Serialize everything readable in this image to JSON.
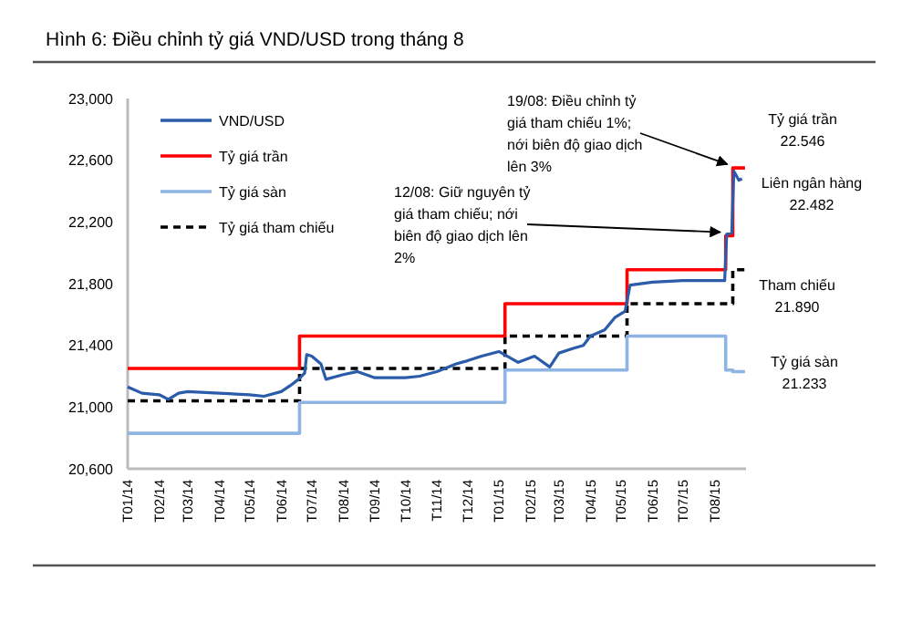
{
  "chart_data": {
    "type": "line",
    "title": "Hình 6: Điều chỉnh tỷ giá VND/USD trong tháng 8",
    "xlim": [
      "2014-01-01",
      "2015-09-01"
    ],
    "xticks": [
      {
        "value": "2014-01-01",
        "label": "T01/14"
      },
      {
        "value": "2014-02-01",
        "label": "T02/14"
      },
      {
        "value": "2014-03-01",
        "label": "T03/14"
      },
      {
        "value": "2014-04-01",
        "label": "T04/14"
      },
      {
        "value": "2014-05-01",
        "label": "T05/14"
      },
      {
        "value": "2014-06-01",
        "label": "T06/14"
      },
      {
        "value": "2014-07-01",
        "label": "T07/14"
      },
      {
        "value": "2014-08-01",
        "label": "T08/14"
      },
      {
        "value": "2014-09-01",
        "label": "T09/14"
      },
      {
        "value": "2014-10-01",
        "label": "T10/14"
      },
      {
        "value": "2014-11-01",
        "label": "T11/14"
      },
      {
        "value": "2014-12-01",
        "label": "T12/14"
      },
      {
        "value": "2015-01-01",
        "label": "T01/15"
      },
      {
        "value": "2015-02-01",
        "label": "T02/15"
      },
      {
        "value": "2015-03-01",
        "label": "T03/15"
      },
      {
        "value": "2015-04-01",
        "label": "T04/15"
      },
      {
        "value": "2015-05-01",
        "label": "T05/15"
      },
      {
        "value": "2015-06-01",
        "label": "T06/15"
      },
      {
        "value": "2015-07-01",
        "label": "T07/15"
      },
      {
        "value": "2015-08-01",
        "label": "T08/15"
      }
    ],
    "ylim": [
      20600,
      23000
    ],
    "yticks": [
      {
        "value": 20600,
        "label": "20,600"
      },
      {
        "value": 21000,
        "label": "21,000"
      },
      {
        "value": 21400,
        "label": "21,400"
      },
      {
        "value": 21800,
        "label": "21,800"
      },
      {
        "value": 22200,
        "label": "22,200"
      },
      {
        "value": 22600,
        "label": "22,600"
      },
      {
        "value": 23000,
        "label": "23,000"
      }
    ],
    "grid": false,
    "legend": "top left",
    "series": [
      {
        "name": "VND/USD",
        "color": "#2a5caa",
        "x": [
          "2014-01-01",
          "2014-01-15",
          "2014-02-01",
          "2014-02-10",
          "2014-02-20",
          "2014-03-01",
          "2014-04-01",
          "2014-05-01",
          "2014-05-15",
          "2014-06-01",
          "2014-06-10",
          "2014-06-18",
          "2014-06-24",
          "2014-06-26",
          "2014-07-01",
          "2014-07-10",
          "2014-07-15",
          "2014-08-01",
          "2014-08-15",
          "2014-09-01",
          "2014-10-01",
          "2014-10-15",
          "2014-11-01",
          "2014-11-20",
          "2014-12-01",
          "2014-12-15",
          "2015-01-01",
          "2015-01-20",
          "2015-02-05",
          "2015-02-20",
          "2015-03-01",
          "2015-03-15",
          "2015-03-25",
          "2015-04-01",
          "2015-04-15",
          "2015-04-25",
          "2015-05-05",
          "2015-05-10",
          "2015-06-01",
          "2015-07-01",
          "2015-08-11",
          "2015-08-13",
          "2015-08-18",
          "2015-08-20",
          "2015-08-25",
          "2015-08-28"
        ],
        "values": [
          21130,
          21090,
          21080,
          21050,
          21090,
          21100,
          21090,
          21080,
          21070,
          21100,
          21140,
          21180,
          21220,
          21340,
          21330,
          21280,
          21180,
          21210,
          21230,
          21190,
          21190,
          21200,
          21230,
          21280,
          21300,
          21330,
          21360,
          21290,
          21330,
          21260,
          21350,
          21380,
          21400,
          21460,
          21500,
          21580,
          21620,
          21790,
          21810,
          21820,
          21820,
          22120,
          22130,
          22530,
          22470,
          22480
        ]
      },
      {
        "name": "Tỷ giá trần",
        "color": "#ff0000",
        "type": "step",
        "x": [
          "2014-01-01",
          "2014-06-19",
          "2015-01-07",
          "2015-05-07",
          "2015-08-12",
          "2015-08-19",
          "2015-08-31"
        ],
        "values": [
          21250,
          21460,
          21670,
          21890,
          22110,
          22550,
          22550
        ]
      },
      {
        "name": "Tỷ giá sàn",
        "color": "#8db4e2",
        "type": "step",
        "x": [
          "2014-01-01",
          "2014-06-19",
          "2015-01-07",
          "2015-05-07",
          "2015-08-12",
          "2015-08-19",
          "2015-08-31"
        ],
        "values": [
          20830,
          21030,
          21240,
          21460,
          21240,
          21230,
          21230
        ]
      },
      {
        "name": "Tỷ giá tham chiếu",
        "color": "#000000",
        "type": "step",
        "line_style": "dashed",
        "x": [
          "2014-01-01",
          "2014-06-19",
          "2015-01-07",
          "2015-05-07",
          "2015-08-12",
          "2015-08-19",
          "2015-08-31"
        ],
        "values": [
          21040,
          21250,
          21460,
          21670,
          21670,
          21890,
          21890
        ]
      }
    ],
    "annotations": [
      "Tỷ giá trần\n22.546",
      "Liên ngân hàng\n22.482",
      "Tham chiếu\n21.890",
      "Tỷ giá sàn\n21.233",
      {
        "text": "19/08: Điều chỉnh tỷ\ngiá tham chiếu 1%;\nnới biên độ giao dịch\nlên 3%",
        "x": "2015-08-19",
        "y": 22550
      },
      {
        "text": "12/08: Giữ nguyên tỷ\ngiá tham chiếu; nới\nbiên độ giao dịch lên\n2%",
        "x": "2015-08-12",
        "y": 22110
      }
    ]
  }
}
